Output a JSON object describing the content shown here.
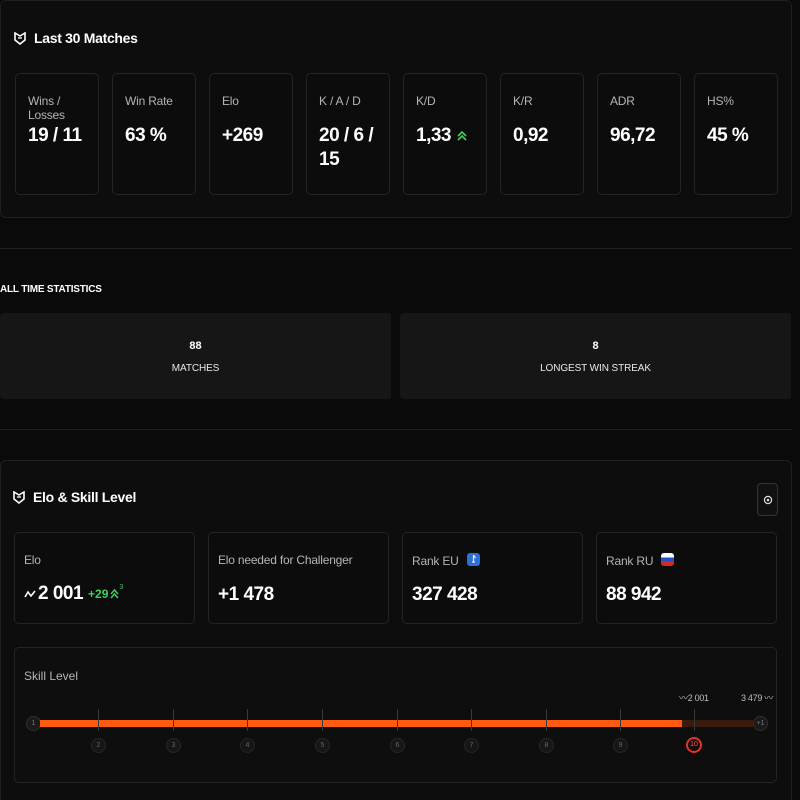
{
  "last30": {
    "title": "Last 30 Matches",
    "stats": [
      {
        "label": "Wins / Losses",
        "value": "19 / 11"
      },
      {
        "label": "Win Rate",
        "value": "63 %"
      },
      {
        "label": "Elo",
        "value": "+269"
      },
      {
        "label": "K / A / D",
        "value": "20 / 6 / 15"
      },
      {
        "label": "K/D",
        "value": "1,33"
      },
      {
        "label": "K/R",
        "value": "0,92"
      },
      {
        "label": "ADR",
        "value": "96,72"
      },
      {
        "label": "HS%",
        "value": "45 %"
      }
    ]
  },
  "alltime": {
    "title": "ALL TIME STATISTICS",
    "matches": {
      "value": "88",
      "label": "MATCHES"
    },
    "streak": {
      "value": "8",
      "label": "LONGEST WIN STREAK"
    }
  },
  "elo_section": {
    "title": "Elo & Skill Level",
    "elo": {
      "label": "Elo",
      "value": "2 001",
      "delta": "+29",
      "delta_sup": "3"
    },
    "challenger": {
      "label": "Elo needed for Challenger",
      "value": "+1 478"
    },
    "rank_eu": {
      "label": "Rank EU",
      "value": "327 428"
    },
    "rank_ru": {
      "label": "Rank RU",
      "value": "88 942"
    },
    "skill": {
      "label": "Skill Level",
      "current_elo_label": "2 001",
      "max_elo_label": "3 479",
      "progress": 0.9,
      "levels": [
        "1",
        "2",
        "3",
        "4",
        "5",
        "6",
        "7",
        "8",
        "9",
        "10"
      ],
      "end_level": "+1",
      "current_level": "10"
    }
  },
  "colors": {
    "accent": "#ff5a10",
    "green": "#3ecf5e",
    "level_red": "#e0322b"
  }
}
